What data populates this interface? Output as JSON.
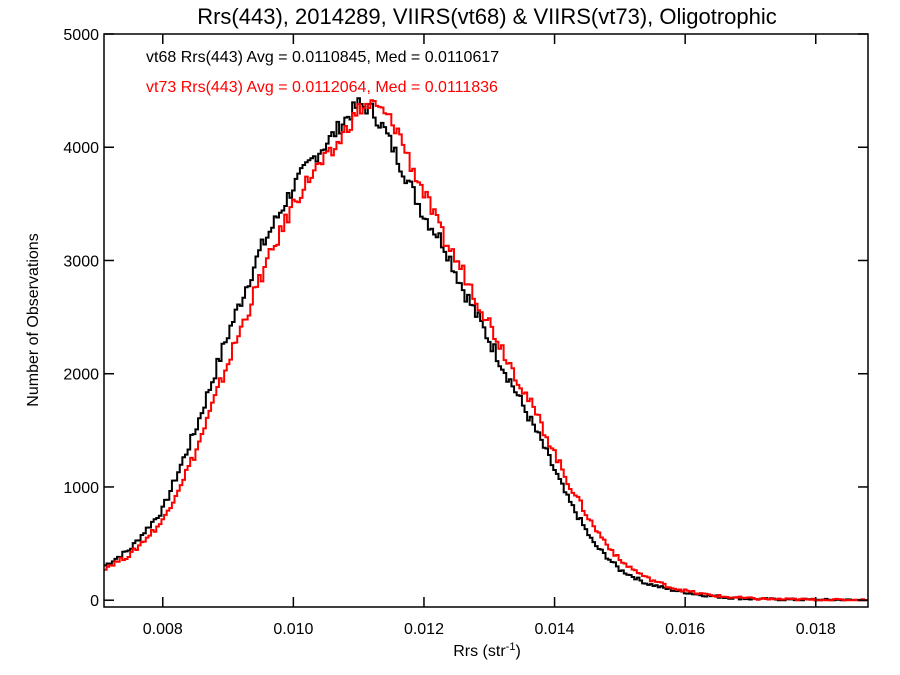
{
  "chart_data": {
    "type": "line",
    "title": "Rrs(443), 2014289, VIIRS(vt68) & VIIRS(vt73), Oligotrophic",
    "xlabel_main": "Rrs (str",
    "xlabel_sup": "-1",
    "xlabel_close": ")",
    "ylabel": "Number of Observations",
    "xlim": [
      0.0071,
      0.0188
    ],
    "ylim": [
      -60,
      5000
    ],
    "xticks": [
      0.008,
      0.01,
      0.012,
      0.014,
      0.016,
      0.018
    ],
    "xtick_labels": [
      "0.008",
      "0.010",
      "0.012",
      "0.014",
      "0.016",
      "0.018"
    ],
    "yticks": [
      0,
      1000,
      2000,
      3000,
      4000,
      5000
    ],
    "ytick_labels": [
      "0",
      "1000",
      "2000",
      "3000",
      "4000",
      "5000"
    ],
    "grid": false,
    "legend_position": "top-left",
    "series": [
      {
        "name": "vt68 Rrs(443) Avg = 0.0110845, Med = 0.0110617",
        "color": "#000000",
        "x": [
          0.0071,
          0.0075,
          0.008,
          0.0085,
          0.009,
          0.0095,
          0.01,
          0.0103,
          0.0106,
          0.0108,
          0.011,
          0.0112,
          0.0114,
          0.0116,
          0.0118,
          0.012,
          0.0123,
          0.0126,
          0.013,
          0.0134,
          0.0138,
          0.0142,
          0.0146,
          0.015,
          0.0154,
          0.0158,
          0.0162,
          0.0166,
          0.017,
          0.0175,
          0.018,
          0.0188
        ],
        "values": [
          300,
          450,
          800,
          1500,
          2350,
          3100,
          3650,
          3900,
          4100,
          4250,
          4380,
          4330,
          4150,
          3900,
          3650,
          3400,
          3150,
          2750,
          2300,
          1850,
          1400,
          900,
          500,
          270,
          150,
          90,
          50,
          25,
          12,
          6,
          3,
          0
        ]
      },
      {
        "name": "vt73 Rrs(443) Avg = 0.0112064, Med = 0.0111836",
        "color": "#ff0000",
        "x": [
          0.0071,
          0.0075,
          0.008,
          0.0085,
          0.009,
          0.0095,
          0.01,
          0.0103,
          0.0106,
          0.0108,
          0.011,
          0.0112,
          0.0114,
          0.0116,
          0.0118,
          0.012,
          0.0123,
          0.0126,
          0.013,
          0.0134,
          0.0138,
          0.0142,
          0.0146,
          0.015,
          0.0154,
          0.0158,
          0.0162,
          0.0166,
          0.017,
          0.0175,
          0.018,
          0.0188
        ],
        "values": [
          280,
          400,
          700,
          1300,
          2100,
          2850,
          3500,
          3780,
          3950,
          4150,
          4330,
          4380,
          4300,
          4150,
          3850,
          3600,
          3200,
          2900,
          2450,
          2000,
          1550,
          1050,
          650,
          350,
          200,
          110,
          60,
          30,
          15,
          8,
          4,
          0
        ]
      }
    ]
  }
}
